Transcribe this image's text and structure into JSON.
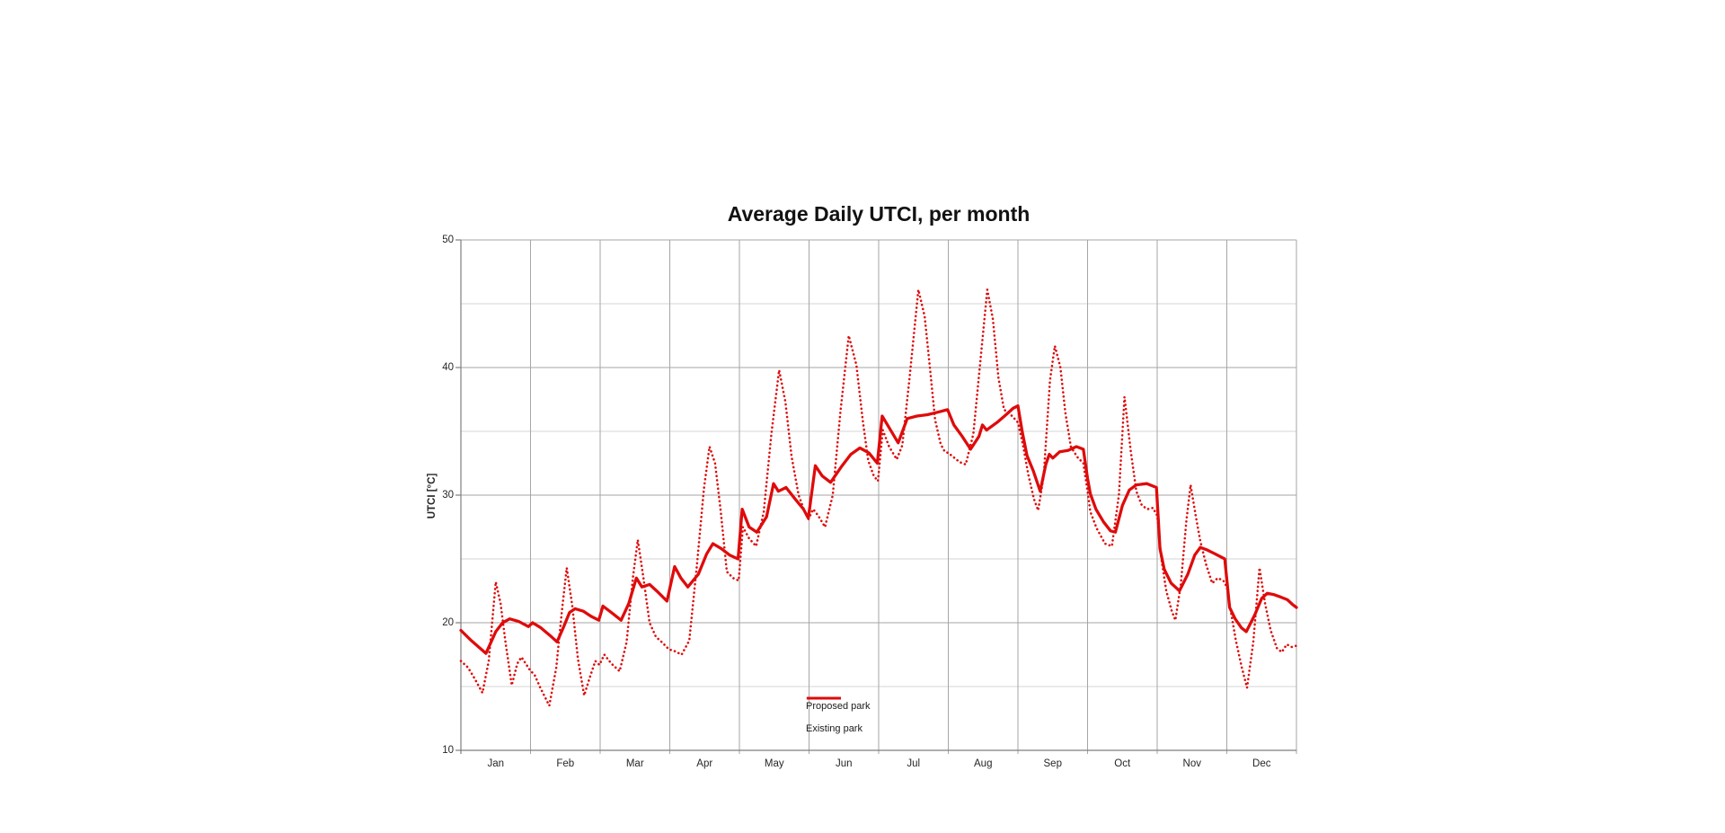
{
  "chart_data": {
    "type": "line",
    "title": "Average Daily UTCI, per month",
    "xlabel": "",
    "ylabel": "UTCI [°C]",
    "ylim": [
      10,
      50
    ],
    "y_major_ticks": [
      10,
      20,
      30,
      40,
      50
    ],
    "y_minor_ticks": [
      15,
      25,
      35,
      45
    ],
    "x_categories": [
      "Jan",
      "Feb",
      "Mar",
      "Apr",
      "May",
      "Jun",
      "Jul",
      "Aug",
      "Sep",
      "Oct",
      "Nov",
      "Dec"
    ],
    "x_unit": "month-fraction 0-12",
    "grid": "on",
    "legend_position": "inside-bottom-center",
    "colors": {
      "series_red": "#df0b0b",
      "grid_major": "#a6a6a6",
      "grid_minor": "#d4d4d4",
      "axis": "#7f7f7f",
      "text": "#262626",
      "title_text": "#121212"
    },
    "series": [
      {
        "name": "Proposed park",
        "style": "solid",
        "points": [
          [
            0.0,
            19.4
          ],
          [
            0.15,
            18.6
          ],
          [
            0.36,
            17.6
          ],
          [
            0.5,
            19.3
          ],
          [
            0.6,
            20.0
          ],
          [
            0.7,
            20.3
          ],
          [
            0.83,
            20.1
          ],
          [
            0.97,
            19.7
          ],
          [
            1.03,
            20.0
          ],
          [
            1.15,
            19.6
          ],
          [
            1.28,
            19.0
          ],
          [
            1.38,
            18.5
          ],
          [
            1.47,
            19.6
          ],
          [
            1.56,
            20.8
          ],
          [
            1.64,
            21.1
          ],
          [
            1.76,
            20.9
          ],
          [
            1.87,
            20.5
          ],
          [
            1.98,
            20.2
          ],
          [
            2.04,
            21.3
          ],
          [
            2.16,
            20.8
          ],
          [
            2.3,
            20.2
          ],
          [
            2.41,
            21.5
          ],
          [
            2.52,
            23.5
          ],
          [
            2.6,
            22.8
          ],
          [
            2.71,
            23.0
          ],
          [
            2.83,
            22.4
          ],
          [
            2.96,
            21.7
          ],
          [
            3.07,
            24.4
          ],
          [
            3.16,
            23.5
          ],
          [
            3.26,
            22.8
          ],
          [
            3.41,
            23.8
          ],
          [
            3.53,
            25.4
          ],
          [
            3.62,
            26.2
          ],
          [
            3.74,
            25.8
          ],
          [
            3.86,
            25.3
          ],
          [
            3.98,
            25.0
          ],
          [
            4.04,
            28.9
          ],
          [
            4.14,
            27.5
          ],
          [
            4.25,
            27.1
          ],
          [
            4.39,
            28.3
          ],
          [
            4.49,
            30.9
          ],
          [
            4.56,
            30.3
          ],
          [
            4.67,
            30.6
          ],
          [
            4.8,
            29.7
          ],
          [
            4.92,
            28.9
          ],
          [
            4.99,
            28.2
          ],
          [
            5.09,
            32.3
          ],
          [
            5.19,
            31.5
          ],
          [
            5.31,
            31.0
          ],
          [
            5.46,
            32.2
          ],
          [
            5.6,
            33.2
          ],
          [
            5.73,
            33.7
          ],
          [
            5.86,
            33.3
          ],
          [
            5.98,
            32.5
          ],
          [
            6.05,
            36.2
          ],
          [
            6.16,
            35.2
          ],
          [
            6.28,
            34.1
          ],
          [
            6.41,
            36.0
          ],
          [
            6.55,
            36.2
          ],
          [
            6.7,
            36.3
          ],
          [
            6.85,
            36.5
          ],
          [
            6.99,
            36.7
          ],
          [
            7.08,
            35.5
          ],
          [
            7.2,
            34.6
          ],
          [
            7.32,
            33.6
          ],
          [
            7.44,
            34.6
          ],
          [
            7.49,
            35.5
          ],
          [
            7.55,
            35.1
          ],
          [
            7.7,
            35.7
          ],
          [
            7.83,
            36.3
          ],
          [
            7.93,
            36.8
          ],
          [
            8.0,
            37.0
          ],
          [
            8.06,
            35.0
          ],
          [
            8.13,
            33.1
          ],
          [
            8.22,
            31.9
          ],
          [
            8.32,
            30.3
          ],
          [
            8.4,
            32.4
          ],
          [
            8.45,
            33.2
          ],
          [
            8.5,
            32.9
          ],
          [
            8.6,
            33.4
          ],
          [
            8.72,
            33.5
          ],
          [
            8.84,
            33.8
          ],
          [
            8.94,
            33.6
          ],
          [
            9.0,
            31.3
          ],
          [
            9.04,
            30.1
          ],
          [
            9.12,
            28.9
          ],
          [
            9.23,
            27.9
          ],
          [
            9.33,
            27.2
          ],
          [
            9.4,
            27.1
          ],
          [
            9.5,
            29.2
          ],
          [
            9.6,
            30.4
          ],
          [
            9.7,
            30.8
          ],
          [
            9.85,
            30.9
          ],
          [
            9.99,
            30.6
          ],
          [
            10.04,
            25.8
          ],
          [
            10.1,
            24.2
          ],
          [
            10.2,
            23.1
          ],
          [
            10.32,
            22.5
          ],
          [
            10.44,
            23.8
          ],
          [
            10.54,
            25.3
          ],
          [
            10.62,
            25.9
          ],
          [
            10.72,
            25.7
          ],
          [
            10.83,
            25.4
          ],
          [
            10.97,
            25.0
          ],
          [
            11.04,
            21.2
          ],
          [
            11.12,
            20.3
          ],
          [
            11.21,
            19.6
          ],
          [
            11.28,
            19.3
          ],
          [
            11.4,
            20.6
          ],
          [
            11.5,
            21.9
          ],
          [
            11.58,
            22.3
          ],
          [
            11.68,
            22.2
          ],
          [
            11.78,
            22.0
          ],
          [
            11.87,
            21.8
          ],
          [
            11.95,
            21.4
          ],
          [
            12.0,
            21.2
          ]
        ]
      },
      {
        "name": "Existing park",
        "style": "dotted",
        "points": [
          [
            0.0,
            17.0
          ],
          [
            0.1,
            16.5
          ],
          [
            0.2,
            15.6
          ],
          [
            0.31,
            14.5
          ],
          [
            0.4,
            17.0
          ],
          [
            0.5,
            23.2
          ],
          [
            0.57,
            21.5
          ],
          [
            0.64,
            18.5
          ],
          [
            0.73,
            15.1
          ],
          [
            0.81,
            16.8
          ],
          [
            0.87,
            17.3
          ],
          [
            0.99,
            16.3
          ],
          [
            1.06,
            15.9
          ],
          [
            1.14,
            14.9
          ],
          [
            1.27,
            13.5
          ],
          [
            1.37,
            16.5
          ],
          [
            1.45,
            20.9
          ],
          [
            1.52,
            24.3
          ],
          [
            1.6,
            21.3
          ],
          [
            1.68,
            17.2
          ],
          [
            1.77,
            14.3
          ],
          [
            1.85,
            15.7
          ],
          [
            1.93,
            17.0
          ],
          [
            1.99,
            16.7
          ],
          [
            2.06,
            17.5
          ],
          [
            2.16,
            16.8
          ],
          [
            2.28,
            16.2
          ],
          [
            2.38,
            18.5
          ],
          [
            2.47,
            23.5
          ],
          [
            2.54,
            26.5
          ],
          [
            2.62,
            23.6
          ],
          [
            2.71,
            20.0
          ],
          [
            2.8,
            18.9
          ],
          [
            2.9,
            18.4
          ],
          [
            2.99,
            17.9
          ],
          [
            3.06,
            17.8
          ],
          [
            3.17,
            17.5
          ],
          [
            3.28,
            18.6
          ],
          [
            3.39,
            24.5
          ],
          [
            3.49,
            30.5
          ],
          [
            3.57,
            33.8
          ],
          [
            3.65,
            32.5
          ],
          [
            3.73,
            28.8
          ],
          [
            3.82,
            24.0
          ],
          [
            3.91,
            23.5
          ],
          [
            3.99,
            23.3
          ],
          [
            4.05,
            27.5
          ],
          [
            4.14,
            26.6
          ],
          [
            4.24,
            26.0
          ],
          [
            4.35,
            28.7
          ],
          [
            4.46,
            34.8
          ],
          [
            4.57,
            39.8
          ],
          [
            4.66,
            37.3
          ],
          [
            4.75,
            33.0
          ],
          [
            4.85,
            30.0
          ],
          [
            4.93,
            28.8
          ],
          [
            4.99,
            28.1
          ],
          [
            5.06,
            28.9
          ],
          [
            5.13,
            28.4
          ],
          [
            5.23,
            27.5
          ],
          [
            5.34,
            30.0
          ],
          [
            5.45,
            36.5
          ],
          [
            5.57,
            42.5
          ],
          [
            5.68,
            40.2
          ],
          [
            5.77,
            35.9
          ],
          [
            5.85,
            32.7
          ],
          [
            5.93,
            31.5
          ],
          [
            5.99,
            31.1
          ],
          [
            6.06,
            35.1
          ],
          [
            6.15,
            33.8
          ],
          [
            6.26,
            32.8
          ],
          [
            6.34,
            33.9
          ],
          [
            6.44,
            39.0
          ],
          [
            6.57,
            46.1
          ],
          [
            6.66,
            44.0
          ],
          [
            6.74,
            39.8
          ],
          [
            6.81,
            35.9
          ],
          [
            6.89,
            34.0
          ],
          [
            6.95,
            33.4
          ],
          [
            7.0,
            33.3
          ],
          [
            7.07,
            33.0
          ],
          [
            7.16,
            32.6
          ],
          [
            7.25,
            32.4
          ],
          [
            7.36,
            34.8
          ],
          [
            7.46,
            40.5
          ],
          [
            7.56,
            46.1
          ],
          [
            7.64,
            43.8
          ],
          [
            7.72,
            39.2
          ],
          [
            7.8,
            36.7
          ],
          [
            7.88,
            36.4
          ],
          [
            7.95,
            36.0
          ],
          [
            8.0,
            35.7
          ],
          [
            8.07,
            34.0
          ],
          [
            8.15,
            31.6
          ],
          [
            8.23,
            29.7
          ],
          [
            8.29,
            28.8
          ],
          [
            8.37,
            31.5
          ],
          [
            8.46,
            39.0
          ],
          [
            8.53,
            41.7
          ],
          [
            8.61,
            40.0
          ],
          [
            8.68,
            36.5
          ],
          [
            8.76,
            33.8
          ],
          [
            8.85,
            33.0
          ],
          [
            8.94,
            32.5
          ],
          [
            9.0,
            30.3
          ],
          [
            9.04,
            28.7
          ],
          [
            9.13,
            27.4
          ],
          [
            9.25,
            26.2
          ],
          [
            9.35,
            26.0
          ],
          [
            9.45,
            30.0
          ],
          [
            9.53,
            37.7
          ],
          [
            9.62,
            33.5
          ],
          [
            9.7,
            30.3
          ],
          [
            9.78,
            29.2
          ],
          [
            9.86,
            28.9
          ],
          [
            9.94,
            29.0
          ],
          [
            10.0,
            28.4
          ],
          [
            10.06,
            25.0
          ],
          [
            10.13,
            22.5
          ],
          [
            10.21,
            20.9
          ],
          [
            10.26,
            20.2
          ],
          [
            10.34,
            23.0
          ],
          [
            10.42,
            28.0
          ],
          [
            10.48,
            30.8
          ],
          [
            10.55,
            28.5
          ],
          [
            10.62,
            26.4
          ],
          [
            10.7,
            24.6
          ],
          [
            10.79,
            23.1
          ],
          [
            10.87,
            23.5
          ],
          [
            10.95,
            23.3
          ],
          [
            11.0,
            22.8
          ],
          [
            11.06,
            20.8
          ],
          [
            11.13,
            18.6
          ],
          [
            11.21,
            16.6
          ],
          [
            11.29,
            14.9
          ],
          [
            11.38,
            18.5
          ],
          [
            11.47,
            24.3
          ],
          [
            11.55,
            21.5
          ],
          [
            11.63,
            19.4
          ],
          [
            11.72,
            18.0
          ],
          [
            11.79,
            17.7
          ],
          [
            11.86,
            18.3
          ],
          [
            11.93,
            18.1
          ],
          [
            12.0,
            18.2
          ]
        ]
      }
    ]
  }
}
